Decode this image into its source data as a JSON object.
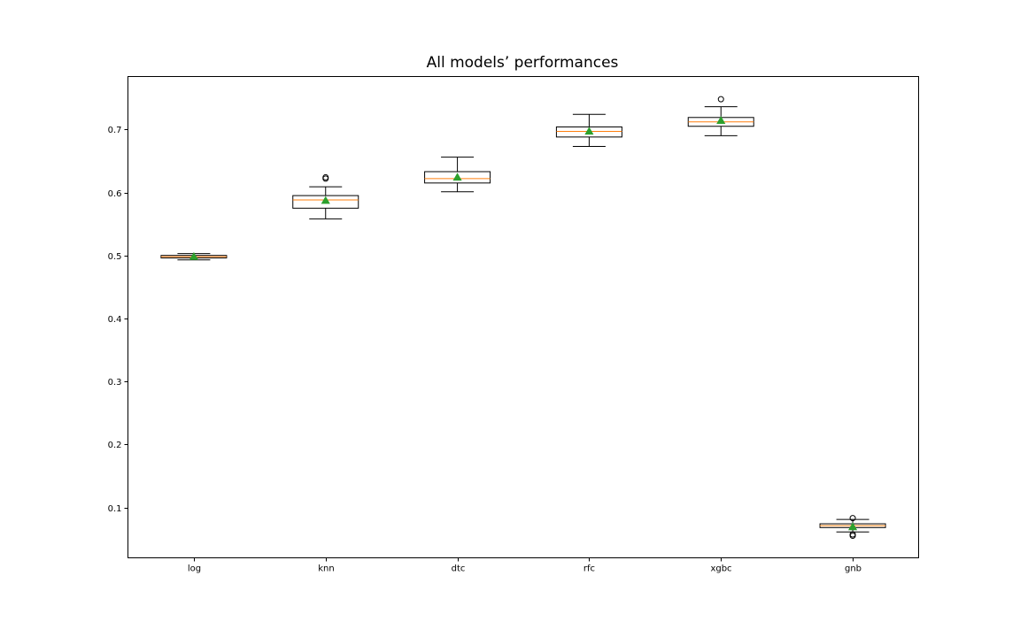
{
  "chart_data": {
    "type": "box",
    "title": "All models’ performances",
    "xlabel": "",
    "ylabel": "",
    "ylim": [
      0.02,
      0.784
    ],
    "yticks": [
      0.1,
      0.2,
      0.3,
      0.4,
      0.5,
      0.6,
      0.7
    ],
    "ytick_labels": [
      "0.1",
      "0.2",
      "0.3",
      "0.4",
      "0.5",
      "0.6",
      "0.7"
    ],
    "categories": [
      "log",
      "knn",
      "dtc",
      "rfc",
      "xgbc",
      "gnb"
    ],
    "boxes": [
      {
        "label": "log",
        "whisker_low": 0.493,
        "q1": 0.496,
        "median": 0.498,
        "q3": 0.5,
        "whisker_high": 0.503,
        "mean": 0.498,
        "outliers": []
      },
      {
        "label": "knn",
        "whisker_low": 0.558,
        "q1": 0.575,
        "median": 0.588,
        "q3": 0.595,
        "whisker_high": 0.609,
        "mean": 0.587,
        "outliers": [
          0.622,
          0.624
        ]
      },
      {
        "label": "dtc",
        "whisker_low": 0.601,
        "q1": 0.615,
        "median": 0.622,
        "q3": 0.633,
        "whisker_high": 0.656,
        "mean": 0.624,
        "outliers": []
      },
      {
        "label": "rfc",
        "whisker_low": 0.673,
        "q1": 0.688,
        "median": 0.697,
        "q3": 0.704,
        "whisker_high": 0.724,
        "mean": 0.697,
        "outliers": []
      },
      {
        "label": "xgbc",
        "whisker_low": 0.69,
        "q1": 0.705,
        "median": 0.712,
        "q3": 0.719,
        "whisker_high": 0.736,
        "mean": 0.714,
        "outliers": [
          0.748
        ]
      },
      {
        "label": "gnb",
        "whisker_low": 0.061,
        "q1": 0.068,
        "median": 0.071,
        "q3": 0.074,
        "whisker_high": 0.081,
        "mean": 0.069,
        "outliers": [
          0.057,
          0.055,
          0.083
        ]
      }
    ],
    "grid": false,
    "colors": {
      "box": "#000000",
      "median": "#ff7f0e",
      "mean": "#2ca02c",
      "axes": "#000000"
    }
  }
}
